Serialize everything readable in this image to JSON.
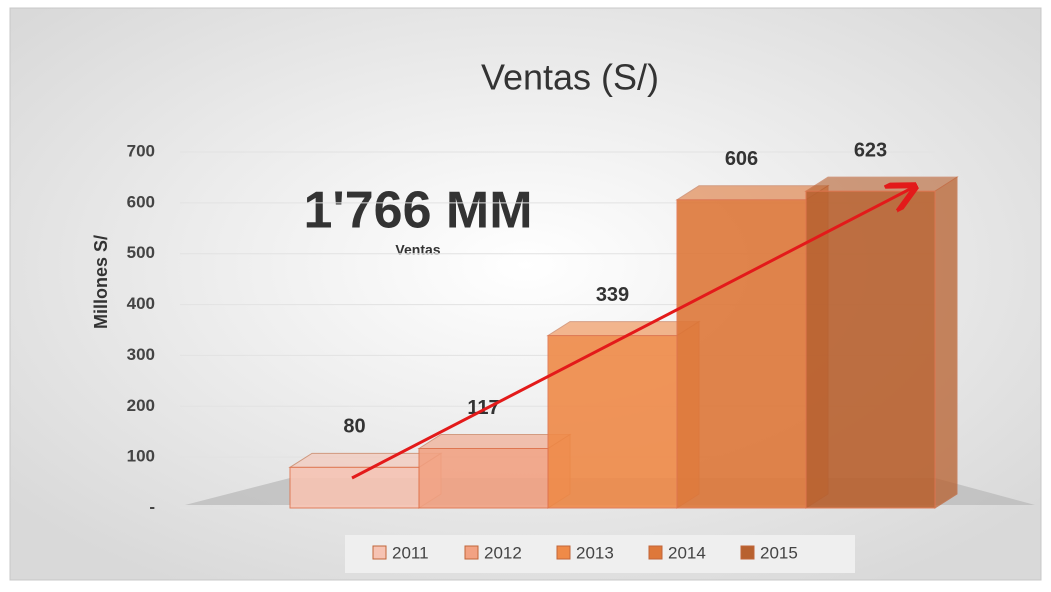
{
  "chart_data": {
    "type": "bar",
    "title": "Ventas (S/)",
    "y_label": "Millones S/",
    "annotations": [
      "1'766 MM",
      "Ventas"
    ],
    "categories": [
      "2011",
      "2012",
      "2013",
      "2014",
      "2015"
    ],
    "values": [
      80,
      117,
      339,
      606,
      623
    ],
    "colors": [
      "#f6c3b3",
      "#f2a283",
      "#ef8a48",
      "#de783a",
      "#b8612f"
    ],
    "ylim": [
      0,
      700
    ],
    "yticks": [
      {
        "value": 0,
        "label": "-"
      },
      100,
      200,
      300,
      400,
      500,
      600,
      700
    ],
    "grid": true,
    "legend": "bottom"
  }
}
